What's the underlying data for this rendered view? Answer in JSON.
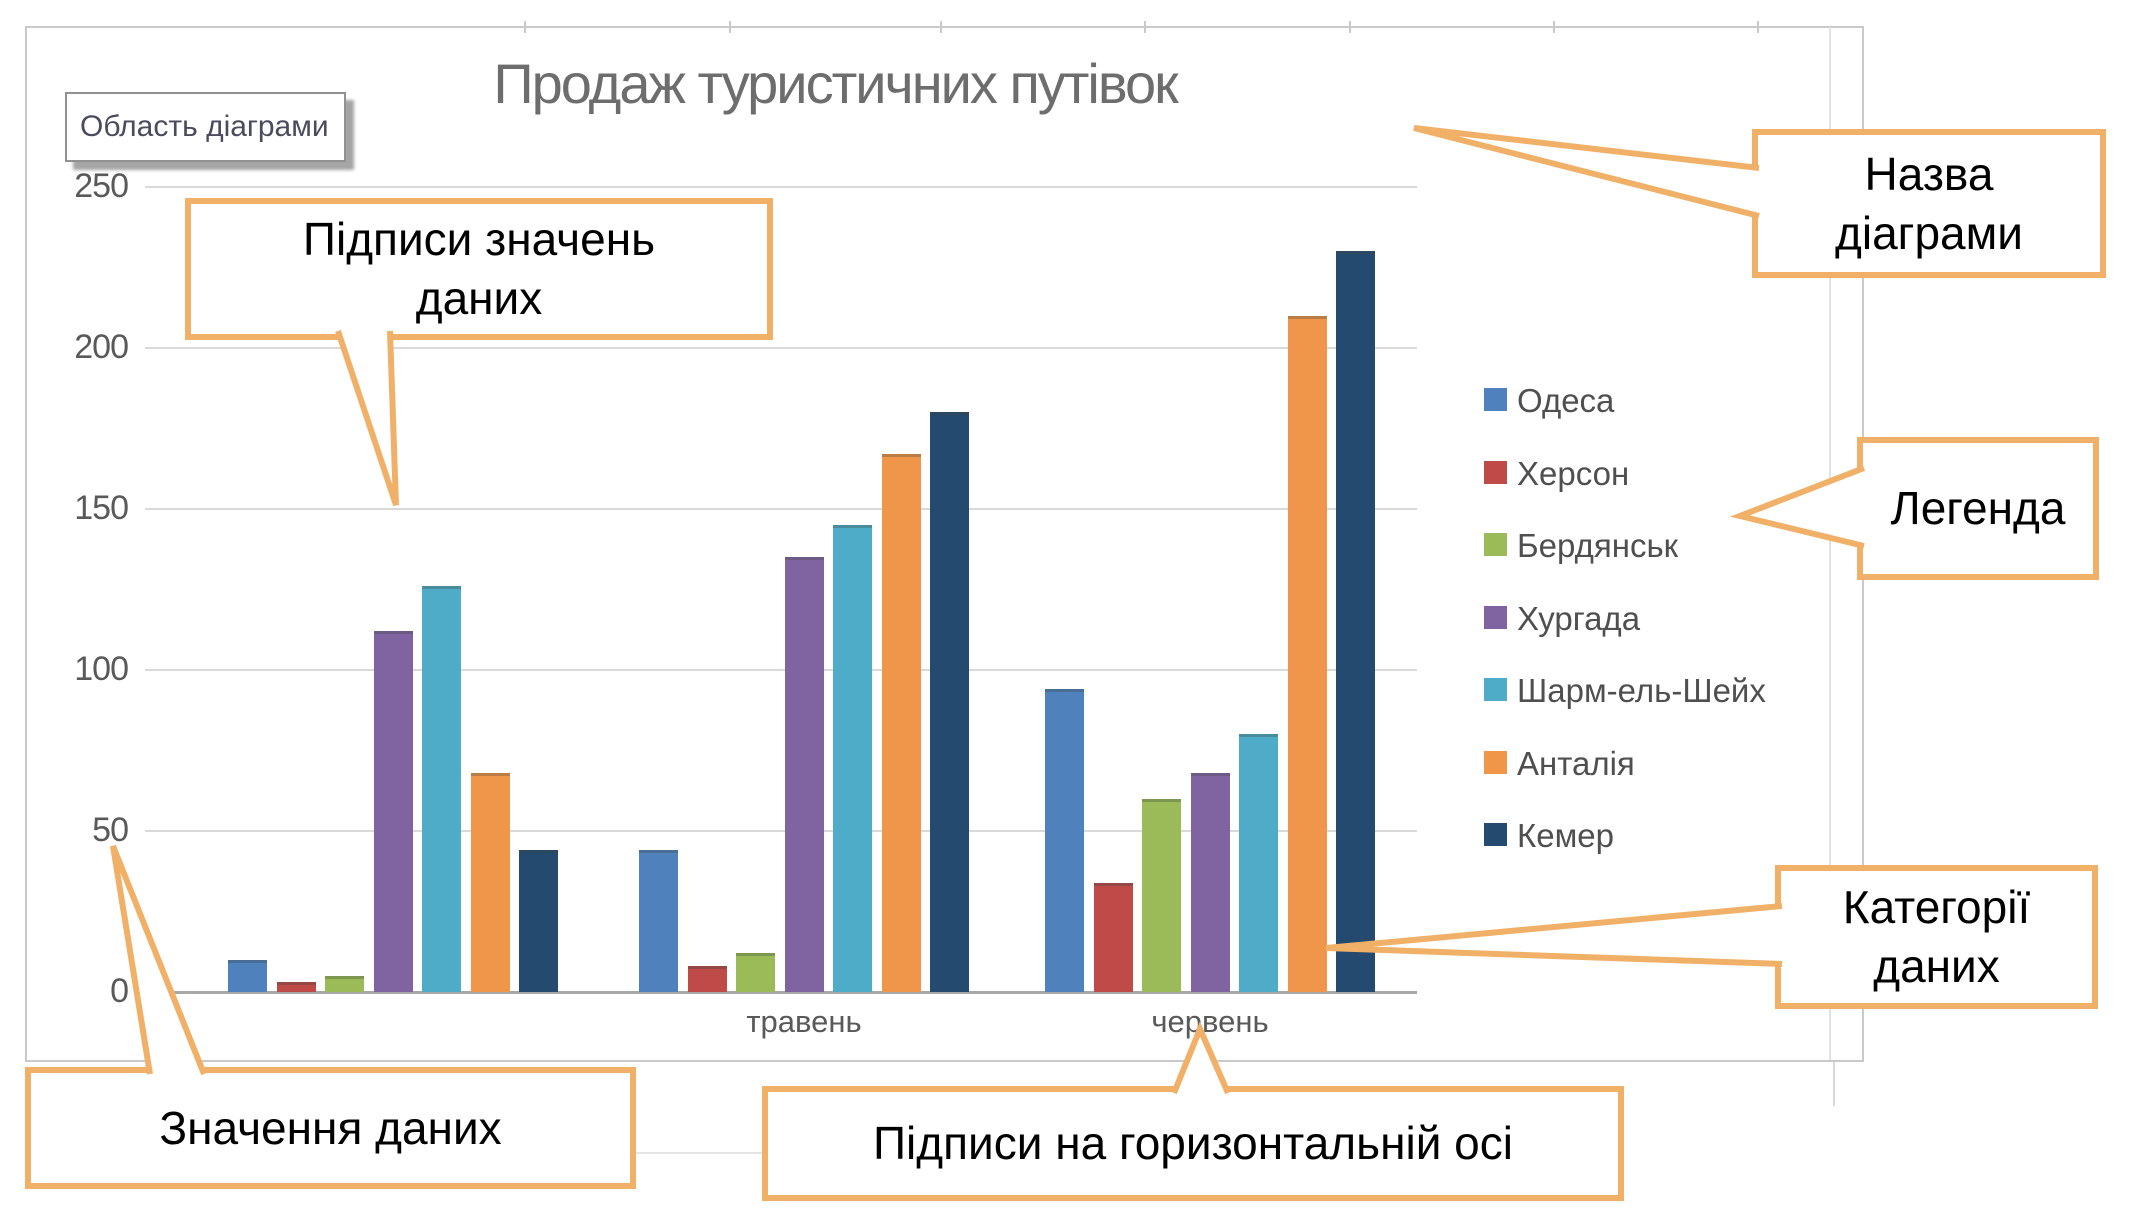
{
  "chart_data": {
    "type": "bar",
    "title": "Продаж туристичних путівок",
    "categories": [
      "",
      "травень",
      "червень"
    ],
    "first_category_label_hidden_by_callout": true,
    "series": [
      {
        "name": "Одеса",
        "color": "#4F81BD",
        "values": [
          10,
          44,
          94
        ]
      },
      {
        "name": "Херсон",
        "color": "#BE4B48",
        "values": [
          3,
          8,
          34
        ]
      },
      {
        "name": "Бердянськ",
        "color": "#9BBB59",
        "values": [
          5,
          12,
          60
        ]
      },
      {
        "name": "Хургада",
        "color": "#8064A2",
        "values": [
          112,
          135,
          68
        ]
      },
      {
        "name": "Шарм-ель-Шейх",
        "color": "#4FACC8",
        "values": [
          126,
          145,
          80
        ]
      },
      {
        "name": "Анталія",
        "color": "#F0964A",
        "values": [
          68,
          167,
          210
        ]
      },
      {
        "name": "Кемер",
        "color": "#254A6F",
        "values": [
          44,
          180,
          230
        ]
      }
    ],
    "y_ticks": [
      0,
      50,
      100,
      150,
      200,
      250
    ],
    "ylim": [
      0,
      250
    ],
    "grid": true,
    "legend_position": "right"
  },
  "screentip": {
    "text": "Область діаграми"
  },
  "annotations": {
    "value_labels": "Підписи значень\nданих",
    "chart_title": "Назва\nдіаграми",
    "legend": "Легенда",
    "categories": "Категорії\nданих",
    "values": "Значення даних",
    "x_axis_labels": "Підписи на горизонтальній осі"
  },
  "palette": {
    "callout_border": "#F1B067",
    "gridline": "#D9D9D9",
    "axis_line": "#A8A8A8",
    "title_text": "#6D6D6D",
    "axis_text": "#595959",
    "legend_text": "#4F4F4F"
  }
}
